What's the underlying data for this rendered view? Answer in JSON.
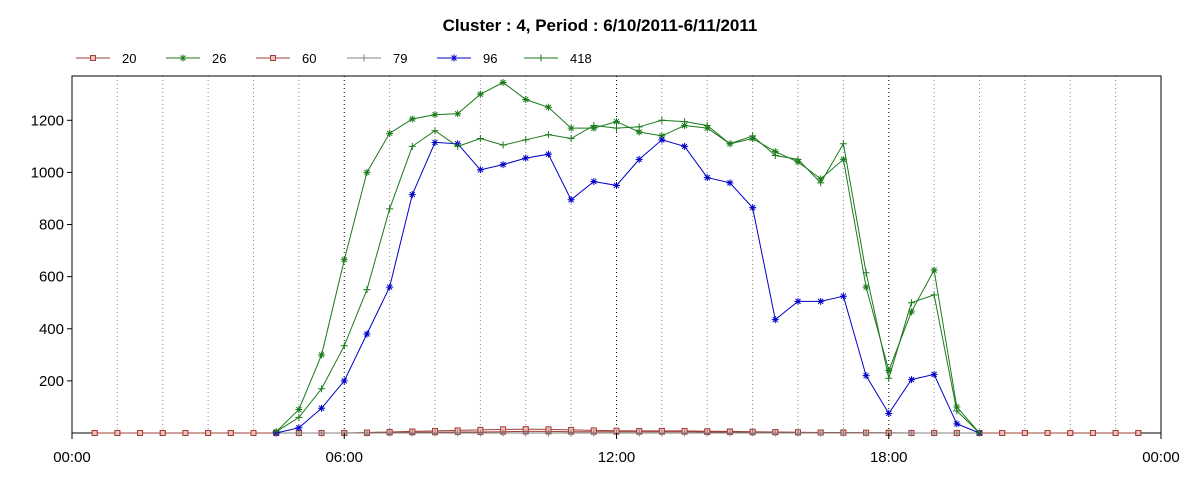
{
  "chart_data": {
    "type": "line",
    "title": "Cluster : 4, Period : 6/10/2011-6/11/2011",
    "xlabel": "",
    "ylabel": "",
    "xlim": [
      0,
      24
    ],
    "ylim": [
      0,
      1370
    ],
    "x_ticks": [
      0,
      6,
      12,
      18,
      24
    ],
    "x_tick_labels": [
      "00:00",
      "06:00",
      "12:00",
      "18:00",
      "00:00"
    ],
    "y_ticks": [
      200,
      400,
      600,
      800,
      1000,
      1200
    ],
    "y_tick_labels": [
      "200",
      "400",
      "600",
      "800",
      "1000",
      "1200"
    ],
    "grid": true,
    "legend_position": "top-left",
    "series": [
      {
        "name": "20",
        "color": "#a0403a",
        "marker": "square",
        "x": [
          0.5,
          1,
          1.5,
          2,
          2.5,
          3,
          3.5,
          4,
          4.5,
          5,
          5.5,
          6,
          6.5,
          7,
          7.5,
          8,
          8.5,
          9,
          9.5,
          10,
          10.5,
          11,
          11.5,
          12,
          12.5,
          13,
          13.5,
          14,
          14.5,
          15,
          15.5,
          16,
          16.5,
          17,
          17.5,
          18,
          18.5,
          19,
          19.5,
          20,
          20.5,
          21,
          21.5,
          22,
          22.5,
          23,
          23.5
        ],
        "y": [
          0,
          0,
          0,
          0,
          0,
          0,
          0,
          0,
          0,
          0,
          0,
          0,
          0,
          2,
          3,
          3,
          4,
          4,
          5,
          6,
          6,
          5,
          5,
          5,
          5,
          5,
          5,
          4,
          4,
          3,
          3,
          2,
          2,
          2,
          1,
          1,
          0,
          0,
          0,
          0,
          0,
          0,
          0,
          0,
          0,
          0,
          0
        ]
      },
      {
        "name": "26",
        "color": "#1a7a1a",
        "marker": "star",
        "x": [
          4.5,
          5,
          5.5,
          6,
          6.5,
          7,
          7.5,
          8,
          8.5,
          9,
          9.5,
          10,
          10.5,
          11,
          11.5,
          12,
          12.5,
          13,
          13.5,
          14,
          14.5,
          15,
          15.5,
          16,
          16.5,
          17,
          17.5,
          18,
          18.5,
          19,
          19.5,
          20
        ],
        "y": [
          5,
          90,
          300,
          665,
          1000,
          1150,
          1205,
          1222,
          1225,
          1300,
          1345,
          1280,
          1250,
          1170,
          1170,
          1195,
          1155,
          1140,
          1180,
          1170,
          1110,
          1130,
          1080,
          1040,
          975,
          1050,
          560,
          240,
          465,
          625,
          100,
          0
        ]
      },
      {
        "name": "60",
        "color": "#a0403a",
        "marker": "square",
        "x": [
          0.5,
          1,
          1.5,
          2,
          2.5,
          3,
          3.5,
          4,
          4.5,
          5,
          5.5,
          6,
          6.5,
          7,
          7.5,
          8,
          8.5,
          9,
          9.5,
          10,
          10.5,
          11,
          11.5,
          12,
          12.5,
          13,
          13.5,
          14,
          14.5,
          15,
          15.5,
          16,
          16.5,
          17,
          17.5,
          18,
          18.5,
          19,
          19.5,
          20,
          20.5,
          21,
          21.5,
          22,
          22.5,
          23,
          23.5
        ],
        "y": [
          0,
          0,
          0,
          0,
          0,
          0,
          0,
          0,
          0,
          0,
          0,
          0,
          2,
          4,
          6,
          8,
          10,
          12,
          14,
          15,
          14,
          12,
          10,
          9,
          8,
          8,
          8,
          7,
          6,
          5,
          4,
          3,
          2,
          1,
          1,
          0,
          0,
          0,
          0,
          0,
          0,
          0,
          0,
          0,
          0,
          0,
          0
        ]
      },
      {
        "name": "79",
        "color": "#808080",
        "marker": "plus",
        "x": [
          4.5,
          5,
          5.5,
          6,
          6.5,
          7,
          7.5,
          8,
          8.5,
          9,
          9.5,
          10,
          10.5,
          11,
          11.5,
          12,
          12.5,
          13,
          13.5,
          14,
          14.5,
          15,
          15.5,
          16,
          16.5,
          17,
          17.5,
          18,
          18.5,
          19,
          19.5,
          20
        ],
        "y": [
          0,
          0,
          0,
          0,
          0,
          0,
          0,
          0,
          0,
          0,
          0,
          0,
          0,
          0,
          0,
          0,
          0,
          0,
          0,
          0,
          0,
          0,
          0,
          0,
          0,
          0,
          0,
          0,
          0,
          0,
          0,
          0
        ]
      },
      {
        "name": "96",
        "color": "#0000c8",
        "marker": "star",
        "x": [
          4.5,
          5,
          5.5,
          6,
          6.5,
          7,
          7.5,
          8,
          8.5,
          9,
          9.5,
          10,
          10.5,
          11,
          11.5,
          12,
          12.5,
          13,
          13.5,
          14,
          14.5,
          15,
          15.5,
          16,
          16.5,
          17,
          17.5,
          18,
          18.5,
          19,
          19.5,
          20
        ],
        "y": [
          0,
          20,
          95,
          200,
          380,
          560,
          915,
          1115,
          1110,
          1010,
          1030,
          1055,
          1070,
          895,
          965,
          950,
          1050,
          1125,
          1100,
          980,
          960,
          865,
          435,
          505,
          505,
          525,
          220,
          75,
          205,
          225,
          35,
          0
        ]
      },
      {
        "name": "418",
        "color": "#1a7a1a",
        "marker": "plus",
        "x": [
          4.5,
          5,
          5.5,
          6,
          6.5,
          7,
          7.5,
          8,
          8.5,
          9,
          9.5,
          10,
          10.5,
          11,
          11.5,
          12,
          12.5,
          13,
          13.5,
          14,
          14.5,
          15,
          15.5,
          16,
          16.5,
          17,
          17.5,
          18,
          18.5,
          19,
          19.5,
          20
        ],
        "y": [
          5,
          60,
          170,
          335,
          550,
          860,
          1100,
          1160,
          1100,
          1130,
          1105,
          1125,
          1145,
          1130,
          1180,
          1170,
          1175,
          1200,
          1195,
          1180,
          1110,
          1140,
          1065,
          1050,
          960,
          1110,
          615,
          210,
          500,
          530,
          85,
          0
        ]
      }
    ]
  }
}
